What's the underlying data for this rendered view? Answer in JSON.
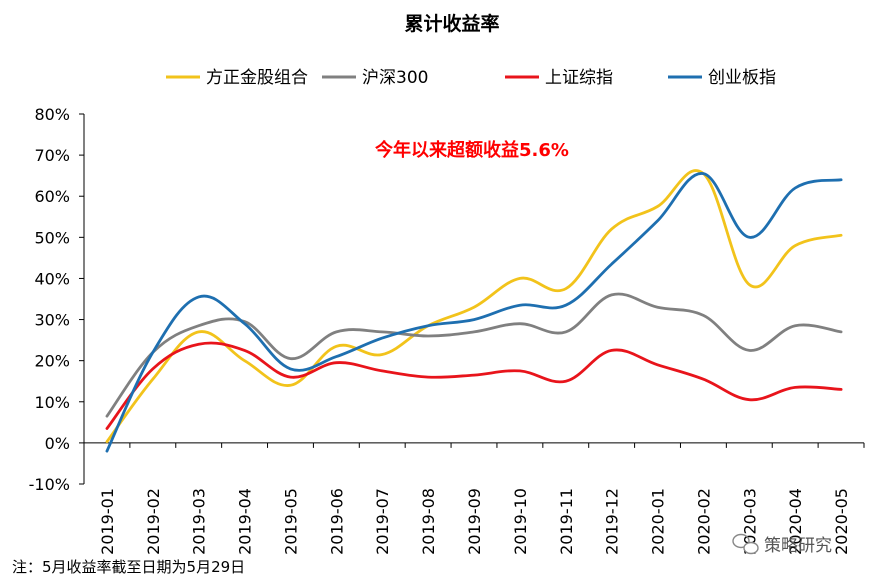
{
  "chart_data": {
    "type": "line",
    "title": "累计收益率",
    "categories": [
      "2019-01",
      "2019-02",
      "2019-03",
      "2019-04",
      "2019-05",
      "2019-06",
      "2019-07",
      "2019-08",
      "2019-09",
      "2019-10",
      "2019-11",
      "2019-12",
      "2020-01",
      "2020-02",
      "2020-03",
      "2020-04",
      "2020-05"
    ],
    "ylim": [
      -10,
      80
    ],
    "yticks": [
      -10,
      0,
      10,
      20,
      30,
      40,
      50,
      60,
      70,
      80
    ],
    "ytick_labels": [
      "-10%",
      "0%",
      "10%",
      "20%",
      "30%",
      "40%",
      "50%",
      "60%",
      "70%",
      "80%"
    ],
    "legend_position": "top",
    "series": [
      {
        "name": "方正金股组合",
        "color": "#f2c31b",
        "values": [
          0.3,
          15.5,
          27.0,
          20.0,
          14.0,
          23.5,
          21.5,
          28.5,
          33.0,
          40.0,
          37.5,
          52.0,
          57.5,
          65.5,
          38.5,
          48.0,
          50.5
        ]
      },
      {
        "name": "沪深300",
        "color": "#808080",
        "values": [
          6.5,
          22.0,
          28.5,
          29.5,
          20.5,
          27.0,
          27.0,
          26.0,
          27.0,
          29.0,
          27.0,
          36.0,
          33.0,
          31.0,
          22.5,
          28.5,
          27.0
        ]
      },
      {
        "name": "上证综指",
        "color": "#e8141b",
        "values": [
          3.5,
          18.0,
          24.0,
          22.5,
          16.0,
          19.5,
          17.5,
          16.0,
          16.5,
          17.5,
          15.0,
          22.5,
          19.0,
          15.5,
          10.5,
          13.5,
          13.0
        ]
      },
      {
        "name": "创业板指",
        "color": "#1e6fb0",
        "values": [
          -2.0,
          22.0,
          35.5,
          29.0,
          18.0,
          21.0,
          25.5,
          28.5,
          30.0,
          33.5,
          33.5,
          43.5,
          54.0,
          65.5,
          50.0,
          62.0,
          64.0
        ]
      }
    ],
    "annotation": "今年以来超额收益5.6%"
  },
  "footnote": "注：5月收益率截至日期为5月29日",
  "watermark": "策略研究"
}
